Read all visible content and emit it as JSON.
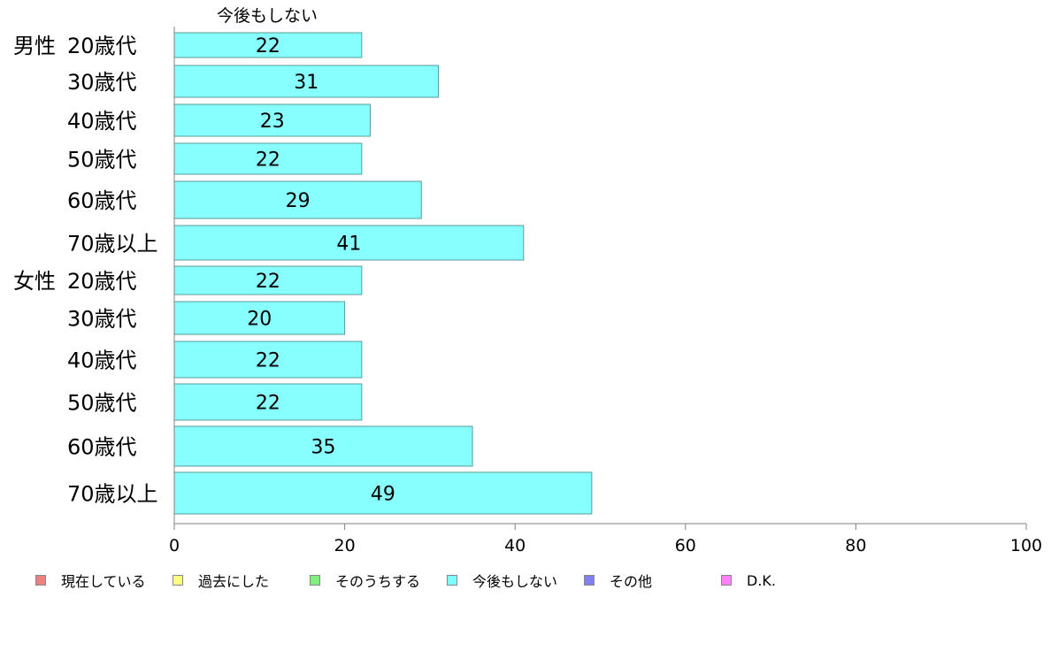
{
  "chart_data": {
    "type": "bar",
    "orientation": "horizontal",
    "series_header": "今後もしない",
    "groups": [
      {
        "label": "男性",
        "categories": [
          "20歳代",
          "30歳代",
          "40歳代",
          "50歳代",
          "60歳代",
          "70歳以上"
        ]
      },
      {
        "label": "女性",
        "categories": [
          "20歳代",
          "30歳代",
          "40歳代",
          "50歳代",
          "60歳代",
          "70歳以上"
        ]
      }
    ],
    "series": [
      {
        "name": "今後もしない",
        "color": "#88ffff",
        "values": [
          22,
          31,
          23,
          22,
          29,
          41,
          22,
          20,
          22,
          22,
          35,
          49
        ]
      }
    ],
    "xlim": [
      0,
      100
    ],
    "xticks": [
      "0",
      "20",
      "40",
      "60",
      "80",
      "100"
    ],
    "grid": false,
    "legend_position": "bottom"
  },
  "legend": [
    {
      "label": "現在している",
      "color": "#f08080"
    },
    {
      "label": "過去にした",
      "color": "#ffff80"
    },
    {
      "label": "そのうちする",
      "color": "#80f080"
    },
    {
      "label": "今後もしない",
      "color": "#80ffff"
    },
    {
      "label": "その他",
      "color": "#8080f0"
    },
    {
      "label": "D.K.",
      "color": "#ff80ff"
    }
  ]
}
